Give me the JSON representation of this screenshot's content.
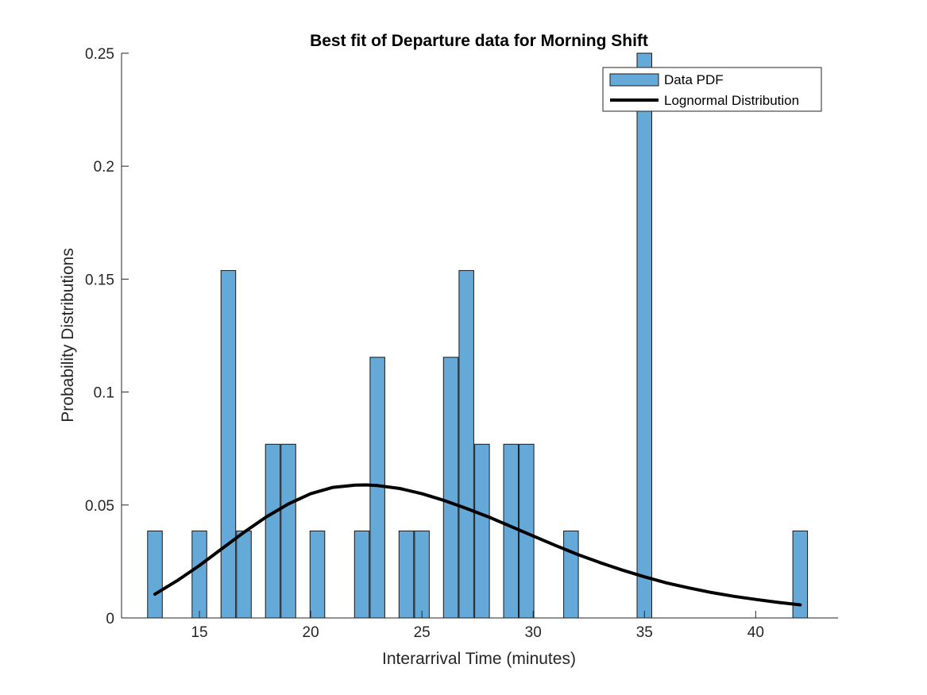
{
  "chart_data": {
    "type": "bar",
    "title": "Best fit of Departure data for Morning Shift",
    "xlabel": "Interarrival Time (minutes)",
    "ylabel": "Probability Distributions",
    "xlim": [
      11.5,
      43.7
    ],
    "ylim": [
      0,
      0.25
    ],
    "xticks": [
      15,
      20,
      25,
      30,
      35,
      40
    ],
    "yticks": [
      0,
      0.05,
      0.1,
      0.15,
      0.2,
      0.25
    ],
    "ytick_labels": [
      "0",
      "0.05",
      "0.1",
      "0.15",
      "0.2",
      "0.25"
    ],
    "bin_width": 0.66,
    "legend_position": "top-right",
    "grid": false,
    "series": [
      {
        "name": "Data PDF",
        "kind": "histogram",
        "color": "#65a9d8",
        "edge_color": "#1a1a1a",
        "bins": [
          {
            "x": 13.0,
            "y": 0.0385
          },
          {
            "x": 15.0,
            "y": 0.0385
          },
          {
            "x": 16.3,
            "y": 0.1538
          },
          {
            "x": 17.0,
            "y": 0.0385
          },
          {
            "x": 18.3,
            "y": 0.0769
          },
          {
            "x": 19.0,
            "y": 0.0769
          },
          {
            "x": 20.3,
            "y": 0.0385
          },
          {
            "x": 22.3,
            "y": 0.0385
          },
          {
            "x": 23.0,
            "y": 0.1154
          },
          {
            "x": 24.3,
            "y": 0.0385
          },
          {
            "x": 25.0,
            "y": 0.0385
          },
          {
            "x": 26.3,
            "y": 0.1154
          },
          {
            "x": 27.0,
            "y": 0.1538
          },
          {
            "x": 27.7,
            "y": 0.0769
          },
          {
            "x": 29.0,
            "y": 0.0769
          },
          {
            "x": 29.7,
            "y": 0.0769
          },
          {
            "x": 31.7,
            "y": 0.0385
          },
          {
            "x": 35.0,
            "y": 0.25
          },
          {
            "x": 42.0,
            "y": 0.0385
          }
        ]
      },
      {
        "name": "Lognormal Distribution",
        "kind": "line",
        "color": "#000000",
        "x": [
          13,
          14,
          15,
          16,
          17,
          18,
          19,
          20,
          21,
          22,
          22.5,
          23,
          24,
          25,
          26,
          27,
          28,
          29,
          30,
          31,
          32,
          33,
          34,
          35,
          36,
          37,
          38,
          39,
          40,
          41,
          42
        ],
        "y": [
          0.0105,
          0.0165,
          0.0232,
          0.0306,
          0.0379,
          0.0447,
          0.0505,
          0.055,
          0.0578,
          0.0588,
          0.0589,
          0.0586,
          0.0573,
          0.055,
          0.052,
          0.0485,
          0.0447,
          0.0405,
          0.0363,
          0.0321,
          0.0281,
          0.0245,
          0.0212,
          0.0182,
          0.0155,
          0.0133,
          0.0113,
          0.0096,
          0.0082,
          0.0069,
          0.0058
        ]
      }
    ]
  }
}
